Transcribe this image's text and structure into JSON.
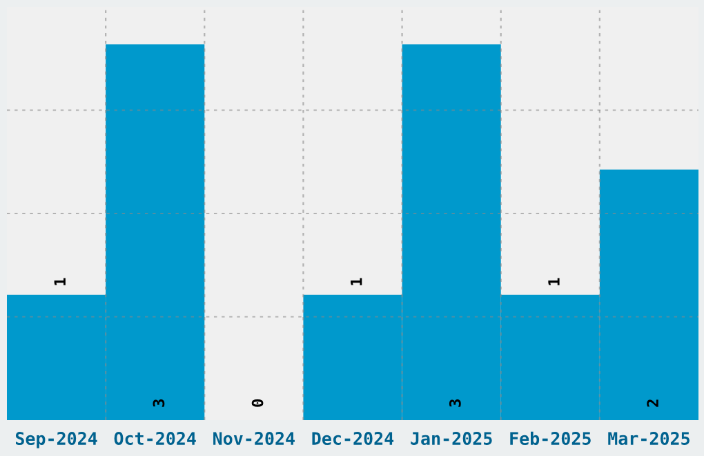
{
  "chart_data": {
    "type": "bar",
    "categories": [
      "Sep-2024",
      "Oct-2024",
      "Nov-2024",
      "Dec-2024",
      "Jan-2025",
      "Feb-2025",
      "Mar-2025"
    ],
    "values": [
      1,
      3,
      0,
      1,
      3,
      1,
      2
    ],
    "color": "#0099cc",
    "data_labels": true,
    "ylim": [
      0,
      3.3
    ],
    "yticks": [
      {
        "value": 0.825,
        "label": null
      },
      {
        "value": 1.65,
        "label": null
      },
      {
        "value": 2.475,
        "label": null
      }
    ],
    "tick_labels": "x",
    "grid": true
  }
}
